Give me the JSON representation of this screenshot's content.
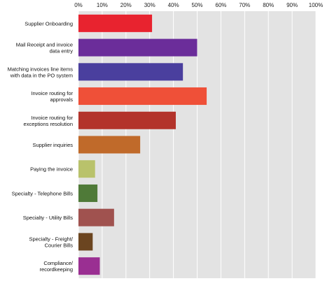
{
  "chart_data": {
    "type": "bar",
    "orientation": "horizontal",
    "title": "",
    "xlabel": "",
    "ylabel": "",
    "xlim": [
      0,
      100
    ],
    "x_ticks": [
      "0%",
      "10%",
      "20%",
      "30%",
      "40%",
      "50%",
      "60%",
      "70%",
      "80%",
      "90%",
      "100%"
    ],
    "grid": "vertical",
    "legend": "none",
    "categories": [
      [
        "Supplier Onboarding"
      ],
      [
        "Mail Receipt and invoice",
        "data entry"
      ],
      [
        "Matching invoices line items",
        "with data in the PO system"
      ],
      [
        "Invoice routing for",
        "approvals"
      ],
      [
        "Invoice routing for",
        "exceptions resolution"
      ],
      [
        "Supplier inquiries"
      ],
      [
        "Paying the invoice"
      ],
      [
        "Specialty - Telephone Bills"
      ],
      [
        "Specialty - Utility Bills"
      ],
      [
        "Specialty - Freight/",
        "Courier Bills"
      ],
      [
        "Compliance/",
        "recordkeeping"
      ]
    ],
    "values": [
      31,
      50,
      44,
      54,
      41,
      26,
      7,
      8,
      15,
      6,
      9
    ],
    "colors": [
      "#e8232f",
      "#6b2d9a",
      "#4a3f9e",
      "#ef5038",
      "#b3332b",
      "#c06a2a",
      "#b9c26b",
      "#4f7a38",
      "#a0524f",
      "#6b4520",
      "#9a2f92"
    ]
  }
}
